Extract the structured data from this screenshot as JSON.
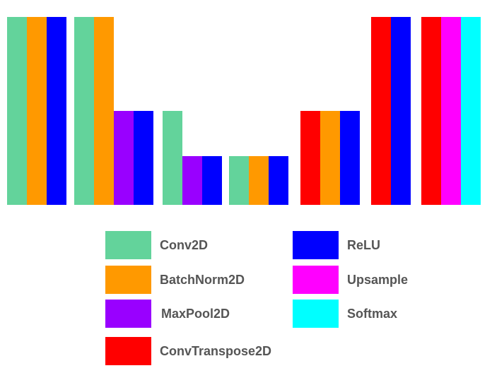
{
  "layer_types": [
    {
      "key": "conv2d",
      "label": "Conv2D",
      "color": "#63D39B"
    },
    {
      "key": "batchnorm2d",
      "label": "BatchNorm2D",
      "color": "#FF9900"
    },
    {
      "key": "maxpool2d",
      "label": "MaxPool2D",
      "color": "#9900FF"
    },
    {
      "key": "convtranspose2d",
      "label": "ConvTranspose2D",
      "color": "#FF0000"
    },
    {
      "key": "relu",
      "label": "ReLU",
      "color": "#0000FF"
    },
    {
      "key": "upsample",
      "label": "Upsample",
      "color": "#FF00FF"
    },
    {
      "key": "softmax",
      "label": "Softmax",
      "color": "#00FFFF"
    }
  ],
  "blocks": [
    {
      "layers": [
        {
          "type": "conv2d",
          "level": 1.0
        },
        {
          "type": "batchnorm2d",
          "level": 1.0
        },
        {
          "type": "relu",
          "level": 1.0
        }
      ]
    },
    {
      "layers": [
        {
          "type": "conv2d",
          "level": 1.0
        },
        {
          "type": "batchnorm2d",
          "level": 1.0
        },
        {
          "type": "maxpool2d",
          "level": 0.5
        },
        {
          "type": "relu",
          "level": 0.5
        }
      ]
    },
    {
      "layers": [
        {
          "type": "conv2d",
          "level": 0.5
        },
        {
          "type": "maxpool2d",
          "level": 0.26
        },
        {
          "type": "relu",
          "level": 0.26
        }
      ]
    },
    {
      "layers": [
        {
          "type": "conv2d",
          "level": 0.26
        },
        {
          "type": "batchnorm2d",
          "level": 0.26
        },
        {
          "type": "relu",
          "level": 0.26
        }
      ]
    },
    {
      "layers": [
        {
          "type": "convtranspose2d",
          "level": 0.5
        },
        {
          "type": "batchnorm2d",
          "level": 0.5
        },
        {
          "type": "relu",
          "level": 0.5
        }
      ]
    },
    {
      "layers": [
        {
          "type": "convtranspose2d",
          "level": 1.0
        },
        {
          "type": "relu",
          "level": 1.0
        }
      ]
    },
    {
      "layers": [
        {
          "type": "convtranspose2d",
          "level": 1.0
        },
        {
          "type": "upsample",
          "level": 1.0
        },
        {
          "type": "softmax",
          "level": 1.0
        }
      ]
    }
  ],
  "legend": {
    "items": [
      {
        "label": "Conv2D",
        "color": "#63D39B"
      },
      {
        "label": "BatchNorm2D",
        "color": "#FF9900"
      },
      {
        "label": "MaxPool2D",
        "color": "#9900FF"
      },
      {
        "label": "ConvTranspose2D",
        "color": "#FF0000"
      },
      {
        "label": "ReLU",
        "color": "#0000FF"
      },
      {
        "label": "Upsample",
        "color": "#FF00FF"
      },
      {
        "label": "Softmax",
        "color": "#00FFFF"
      }
    ]
  }
}
